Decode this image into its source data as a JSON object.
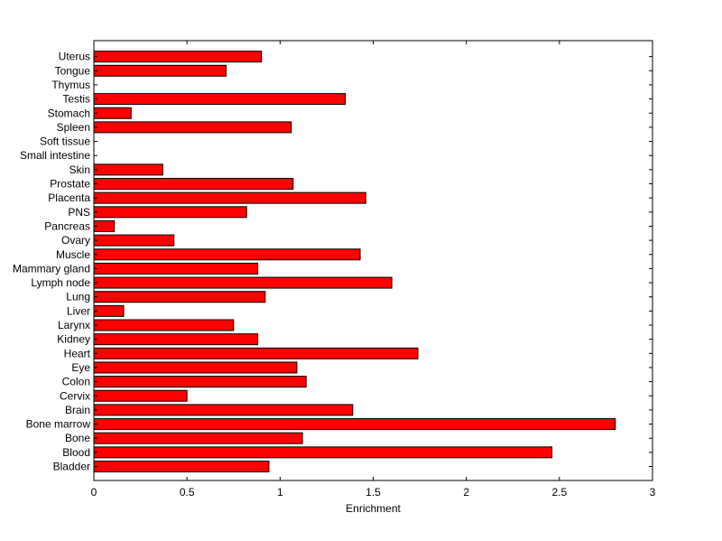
{
  "chart_data": {
    "type": "bar",
    "orientation": "horizontal",
    "title": "",
    "xlabel": "Enrichment",
    "ylabel": "",
    "xlim": [
      0,
      3
    ],
    "xticks": [
      0,
      0.5,
      1,
      1.5,
      2,
      2.5,
      3
    ],
    "xtick_labels": [
      "0",
      "0.5",
      "1",
      "1.5",
      "2",
      "2.5",
      "3"
    ],
    "grid": false,
    "bar_color": "#ff0000",
    "categories": [
      "Bladder",
      "Blood",
      "Bone",
      "Bone marrow",
      "Brain",
      "Cervix",
      "Colon",
      "Eye",
      "Heart",
      "Kidney",
      "Larynx",
      "Liver",
      "Lung",
      "Lymph node",
      "Mammary gland",
      "Muscle",
      "Ovary",
      "Pancreas",
      "PNS",
      "Placenta",
      "Prostate",
      "Skin",
      "Small intestine",
      "Soft tissue",
      "Spleen",
      "Stomach",
      "Testis",
      "Thymus",
      "Tongue",
      "Uterus"
    ],
    "values": [
      0.94,
      2.46,
      1.12,
      2.8,
      1.39,
      0.5,
      1.14,
      1.09,
      1.74,
      0.88,
      0.75,
      0.16,
      0.92,
      1.6,
      0.88,
      1.43,
      0.43,
      0.11,
      0.82,
      1.46,
      1.07,
      0.37,
      0,
      0,
      1.06,
      0.2,
      1.35,
      0,
      0.71,
      0.9
    ]
  }
}
